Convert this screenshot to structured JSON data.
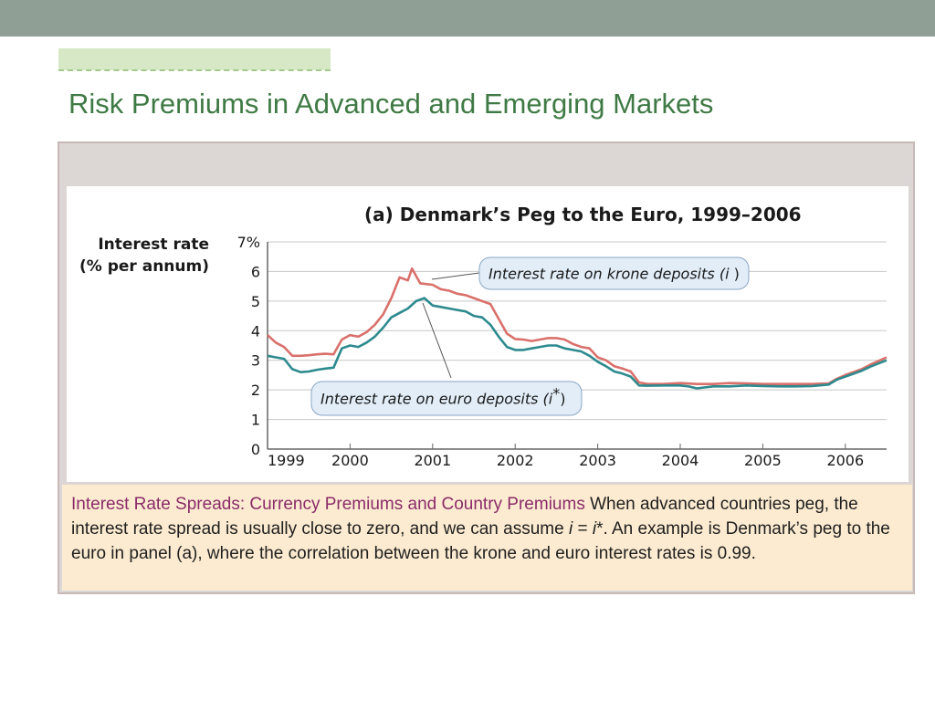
{
  "slide": {
    "title": "Risk Premiums in Advanced and Emerging Markets"
  },
  "caption": {
    "heading": "Interest Rate Spreads: Currency Premiums and Country Premiums",
    "text_part1": " When advanced countries peg, the interest rate spread is usually close to zero, and we can assume ",
    "math_i": "i",
    "equals": " = ",
    "math_istar": "i",
    "star": "*",
    "text_part2": ". An example is Denmark’s peg to the euro in panel (a), where the correlation between the krone and euro interest rates is 0.99."
  },
  "colors": {
    "krone_line": "#d9706b",
    "euro_line": "#2d8a8e",
    "grid": "#c8c8c8",
    "callout_fill": "#e2edf8",
    "title_green": "#3f7a45",
    "caption_heading": "#8b2c6a"
  },
  "chart_data": {
    "type": "line",
    "title": "(a) Denmark’s Peg to the Euro, 1999–2006",
    "ylabel_line1": "Interest rate",
    "ylabel_line2": "(% per annum)",
    "ylim": [
      0,
      7
    ],
    "xlim": [
      1999,
      2006.5
    ],
    "yticks": [
      0,
      1,
      2,
      3,
      4,
      5,
      6,
      7
    ],
    "ytick_labels": [
      "0",
      "1",
      "2",
      "3",
      "4",
      "5",
      "6",
      "7%"
    ],
    "xticks": [
      1999,
      2000,
      2001,
      2002,
      2003,
      2004,
      2005,
      2006
    ],
    "xtick_labels": [
      "1999",
      "2000",
      "2001",
      "2002",
      "2003",
      "2004",
      "2005",
      "2006"
    ],
    "grid": true,
    "series": [
      {
        "name": "Interest rate on krone deposits (i)",
        "label_main": "Interest rate on krone deposits",
        "label_symbol": "i",
        "label_star": "",
        "points": [
          [
            1999.0,
            3.85
          ],
          [
            1999.1,
            3.6
          ],
          [
            1999.2,
            3.45
          ],
          [
            1999.3,
            3.15
          ],
          [
            1999.4,
            3.15
          ],
          [
            1999.5,
            3.17
          ],
          [
            1999.6,
            3.2
          ],
          [
            1999.7,
            3.22
          ],
          [
            1999.8,
            3.2
          ],
          [
            1999.9,
            3.7
          ],
          [
            2000.0,
            3.85
          ],
          [
            2000.1,
            3.8
          ],
          [
            2000.2,
            3.95
          ],
          [
            2000.3,
            4.2
          ],
          [
            2000.4,
            4.55
          ],
          [
            2000.5,
            5.1
          ],
          [
            2000.6,
            5.8
          ],
          [
            2000.7,
            5.7
          ],
          [
            2000.75,
            6.1
          ],
          [
            2000.85,
            5.6
          ],
          [
            2001.0,
            5.55
          ],
          [
            2001.1,
            5.4
          ],
          [
            2001.2,
            5.35
          ],
          [
            2001.3,
            5.25
          ],
          [
            2001.4,
            5.2
          ],
          [
            2001.5,
            5.1
          ],
          [
            2001.6,
            5.0
          ],
          [
            2001.7,
            4.9
          ],
          [
            2001.8,
            4.4
          ],
          [
            2001.9,
            3.9
          ],
          [
            2002.0,
            3.72
          ],
          [
            2002.1,
            3.7
          ],
          [
            2002.2,
            3.65
          ],
          [
            2002.3,
            3.7
          ],
          [
            2002.4,
            3.75
          ],
          [
            2002.5,
            3.75
          ],
          [
            2002.6,
            3.7
          ],
          [
            2002.7,
            3.55
          ],
          [
            2002.8,
            3.45
          ],
          [
            2002.9,
            3.4
          ],
          [
            2003.0,
            3.1
          ],
          [
            2003.1,
            3.0
          ],
          [
            2003.2,
            2.8
          ],
          [
            2003.3,
            2.72
          ],
          [
            2003.4,
            2.62
          ],
          [
            2003.5,
            2.25
          ],
          [
            2003.6,
            2.2
          ],
          [
            2003.8,
            2.2
          ],
          [
            2004.0,
            2.23
          ],
          [
            2004.2,
            2.2
          ],
          [
            2004.4,
            2.2
          ],
          [
            2004.6,
            2.23
          ],
          [
            2004.8,
            2.22
          ],
          [
            2005.0,
            2.2
          ],
          [
            2005.2,
            2.2
          ],
          [
            2005.4,
            2.2
          ],
          [
            2005.6,
            2.2
          ],
          [
            2005.8,
            2.22
          ],
          [
            2005.9,
            2.38
          ],
          [
            2006.0,
            2.5
          ],
          [
            2006.2,
            2.7
          ],
          [
            2006.3,
            2.85
          ],
          [
            2006.5,
            3.1
          ]
        ]
      },
      {
        "name": "Interest rate on euro deposits (i*)",
        "label_main": "Interest rate on euro deposits",
        "label_symbol": "i",
        "label_star": "*",
        "points": [
          [
            1999.0,
            3.15
          ],
          [
            1999.1,
            3.1
          ],
          [
            1999.2,
            3.05
          ],
          [
            1999.3,
            2.7
          ],
          [
            1999.4,
            2.6
          ],
          [
            1999.5,
            2.62
          ],
          [
            1999.6,
            2.68
          ],
          [
            1999.7,
            2.72
          ],
          [
            1999.8,
            2.75
          ],
          [
            1999.9,
            3.4
          ],
          [
            2000.0,
            3.5
          ],
          [
            2000.1,
            3.45
          ],
          [
            2000.2,
            3.6
          ],
          [
            2000.3,
            3.8
          ],
          [
            2000.4,
            4.1
          ],
          [
            2000.5,
            4.45
          ],
          [
            2000.6,
            4.6
          ],
          [
            2000.7,
            4.75
          ],
          [
            2000.8,
            5.0
          ],
          [
            2000.9,
            5.1
          ],
          [
            2001.0,
            4.85
          ],
          [
            2001.1,
            4.8
          ],
          [
            2001.2,
            4.75
          ],
          [
            2001.3,
            4.7
          ],
          [
            2001.4,
            4.65
          ],
          [
            2001.5,
            4.5
          ],
          [
            2001.6,
            4.45
          ],
          [
            2001.7,
            4.2
          ],
          [
            2001.8,
            3.8
          ],
          [
            2001.9,
            3.45
          ],
          [
            2002.0,
            3.35
          ],
          [
            2002.1,
            3.35
          ],
          [
            2002.2,
            3.4
          ],
          [
            2002.3,
            3.45
          ],
          [
            2002.4,
            3.5
          ],
          [
            2002.5,
            3.5
          ],
          [
            2002.6,
            3.4
          ],
          [
            2002.7,
            3.35
          ],
          [
            2002.8,
            3.3
          ],
          [
            2002.9,
            3.15
          ],
          [
            2003.0,
            2.95
          ],
          [
            2003.1,
            2.8
          ],
          [
            2003.2,
            2.62
          ],
          [
            2003.3,
            2.55
          ],
          [
            2003.4,
            2.45
          ],
          [
            2003.5,
            2.15
          ],
          [
            2003.6,
            2.14
          ],
          [
            2003.8,
            2.15
          ],
          [
            2004.0,
            2.15
          ],
          [
            2004.1,
            2.12
          ],
          [
            2004.2,
            2.05
          ],
          [
            2004.4,
            2.12
          ],
          [
            2004.6,
            2.12
          ],
          [
            2004.8,
            2.15
          ],
          [
            2005.0,
            2.13
          ],
          [
            2005.2,
            2.12
          ],
          [
            2005.4,
            2.12
          ],
          [
            2005.6,
            2.13
          ],
          [
            2005.8,
            2.18
          ],
          [
            2005.9,
            2.35
          ],
          [
            2006.0,
            2.45
          ],
          [
            2006.2,
            2.65
          ],
          [
            2006.3,
            2.78
          ],
          [
            2006.5,
            3.0
          ]
        ]
      }
    ]
  }
}
